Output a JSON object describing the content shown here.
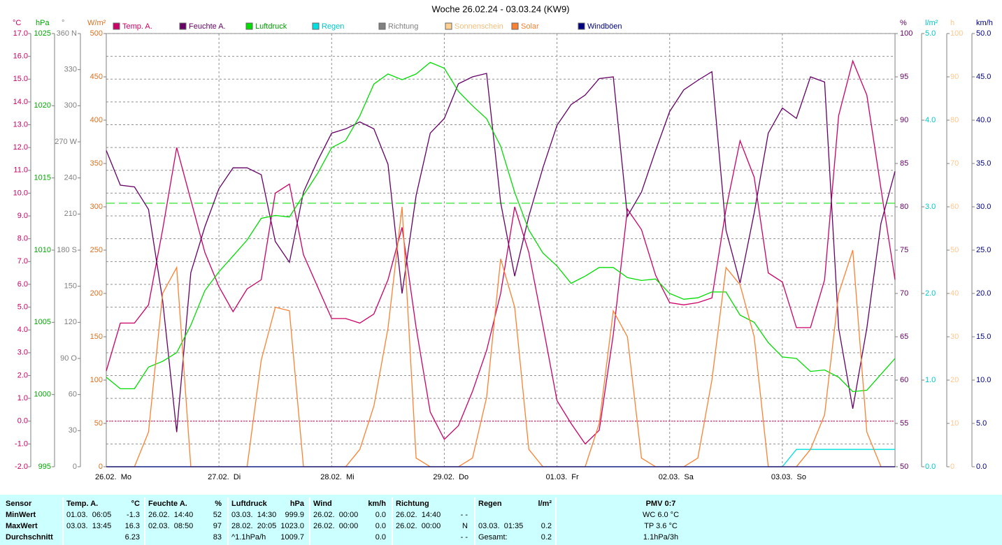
{
  "chart_data": {
    "type": "line",
    "title": "Woche 26.02.24 - 03.03.24 (KW9)",
    "xlim": [
      0,
      168
    ],
    "xticks": [
      {
        "value": 0,
        "label": "26.02.  Mo"
      },
      {
        "value": 24,
        "label": "27.02.  Di"
      },
      {
        "value": 48,
        "label": "28.02.  Mi"
      },
      {
        "value": 72,
        "label": "29.02.  Do"
      },
      {
        "value": 96,
        "label": "01.03.  Fr"
      },
      {
        "value": 120,
        "label": "02.03.  Sa"
      },
      {
        "value": 144,
        "label": "03.03.  So"
      }
    ],
    "axes": [
      {
        "unit": "°C",
        "side": "left",
        "color": "#cc0066",
        "grid": true,
        "lim": [
          -2,
          17
        ],
        "ticks": [
          {
            "value": -2,
            "label": "-2.0"
          },
          {
            "value": -1,
            "label": "-1.0"
          },
          {
            "value": 0,
            "label": "0.0"
          },
          {
            "value": 1,
            "label": "1.0"
          },
          {
            "value": 2,
            "label": "2.0"
          },
          {
            "value": 3,
            "label": "3.0"
          },
          {
            "value": 4,
            "label": "4.0"
          },
          {
            "value": 5,
            "label": "5.0"
          },
          {
            "value": 6,
            "label": "6.0"
          },
          {
            "value": 7,
            "label": "7.0"
          },
          {
            "value": 8,
            "label": "8.0"
          },
          {
            "value": 9,
            "label": "9.0"
          },
          {
            "value": 10,
            "label": "10.0"
          },
          {
            "value": 11,
            "label": "11.0"
          },
          {
            "value": 12,
            "label": "12.0"
          },
          {
            "value": 13,
            "label": "13.0"
          },
          {
            "value": 14,
            "label": "14.0"
          },
          {
            "value": 15,
            "label": "15.0"
          },
          {
            "value": 16,
            "label": "16.0"
          },
          {
            "value": 17,
            "label": "17.0"
          }
        ]
      },
      {
        "unit": "hPa",
        "side": "left",
        "color": "#00aa00",
        "lim": [
          995,
          1025
        ],
        "ticks": [
          995,
          1000,
          1005,
          1010,
          1015,
          1020,
          1025
        ]
      },
      {
        "unit": "°",
        "side": "left",
        "color": "#808080",
        "lim": [
          0,
          360
        ],
        "ticks": [
          0,
          30,
          60,
          {
            "value": 90,
            "label": "90 O"
          },
          120,
          150,
          {
            "value": 180,
            "label": "180 S"
          },
          210,
          240,
          {
            "value": 270,
            "label": "270 W"
          },
          300,
          330,
          {
            "value": 360,
            "label": "360 N"
          }
        ]
      },
      {
        "unit": "W/m²",
        "side": "left",
        "color": "#e07020",
        "lim": [
          0,
          500
        ],
        "ticks": [
          0,
          50,
          100,
          150,
          200,
          250,
          300,
          350,
          400,
          450,
          500
        ]
      },
      {
        "unit": "%",
        "side": "right",
        "color": "#660066",
        "lim": [
          50,
          100
        ],
        "ticks": [
          50,
          55,
          60,
          65,
          70,
          75,
          80,
          85,
          90,
          95,
          100
        ]
      },
      {
        "unit": "l/m²",
        "side": "right",
        "color": "#00c8c8",
        "lim": [
          0,
          5
        ],
        "ticks": [
          {
            "value": 0,
            "label": "0.0"
          },
          {
            "value": 1,
            "label": "1.0"
          },
          {
            "value": 2,
            "label": "2.0"
          },
          {
            "value": 3,
            "label": "3.0"
          },
          {
            "value": 4,
            "label": "4.0"
          },
          {
            "value": 5,
            "label": "5.0"
          }
        ]
      },
      {
        "unit": "h",
        "side": "right",
        "color": "#ffc890",
        "lim": [
          0,
          100
        ],
        "ticks": [
          0,
          10,
          20,
          30,
          40,
          50,
          60,
          70,
          80,
          90,
          100
        ]
      },
      {
        "unit": "km/h",
        "side": "right",
        "color": "#000080",
        "lim": [
          0,
          50
        ],
        "ticks": [
          {
            "value": 0,
            "label": "0.0"
          },
          {
            "value": 5,
            "label": "5.0"
          },
          {
            "value": 10,
            "label": "10.0"
          },
          {
            "value": 15,
            "label": "15.0"
          },
          {
            "value": 20,
            "label": "20.0"
          },
          {
            "value": 25,
            "label": "25.0"
          },
          {
            "value": 30,
            "label": "30.0"
          },
          {
            "value": 35,
            "label": "35.0"
          },
          {
            "value": 40,
            "label": "40.0"
          },
          {
            "value": 45,
            "label": "45.0"
          },
          {
            "value": 50,
            "label": "50.0"
          }
        ]
      }
    ],
    "reference_lines": [
      {
        "axis": "°C",
        "value": 0,
        "color": "#cc0066"
      },
      {
        "axis": "hPa",
        "value": 1013.25,
        "color": "#00dd00"
      }
    ],
    "x": [
      0,
      3,
      6,
      9,
      12,
      15,
      18,
      21,
      24,
      27,
      30,
      33,
      36,
      39,
      42,
      45,
      48,
      51,
      54,
      57,
      60,
      63,
      66,
      69,
      72,
      75,
      78,
      81,
      84,
      87,
      90,
      93,
      96,
      99,
      102,
      105,
      108,
      111,
      114,
      117,
      120,
      123,
      126,
      129,
      132,
      135,
      138,
      141,
      144,
      147,
      150,
      153,
      156,
      159,
      162,
      165,
      168
    ],
    "series": [
      {
        "name": "Temp. A.",
        "color": "#cc0066",
        "axis": "°C",
        "values": [
          2.2,
          4.3,
          4.3,
          5.1,
          8.4,
          12.0,
          9.7,
          7.4,
          5.9,
          4.8,
          5.8,
          6.2,
          10.0,
          10.4,
          7.3,
          5.9,
          4.5,
          4.5,
          4.3,
          4.7,
          6.2,
          8.5,
          4.1,
          0.4,
          -0.8,
          -0.2,
          1.3,
          3.1,
          5.6,
          9.4,
          7.4,
          4.2,
          0.9,
          -0.1,
          -1.0,
          -0.4,
          3.8,
          9.3,
          8.4,
          6.4,
          5.2,
          5.1,
          5.2,
          5.4,
          9.3,
          12.3,
          10.7,
          6.5,
          6.1,
          4.1,
          4.1,
          6.2,
          13.4,
          15.8,
          14.3,
          10.2,
          6.2
        ]
      },
      {
        "name": "Feuchte A.",
        "color": "#660066",
        "axis": "%",
        "values": [
          86.5,
          82.5,
          82.3,
          79.7,
          69.2,
          54.0,
          72.4,
          77.7,
          82.1,
          84.5,
          84.5,
          83.7,
          76.0,
          73.6,
          81.7,
          85.3,
          88.5,
          89.0,
          89.8,
          89.0,
          84.9,
          70.0,
          81.3,
          88.5,
          90.2,
          94.2,
          95.0,
          95.4,
          80.5,
          72.0,
          78.9,
          84.5,
          89.4,
          91.8,
          92.9,
          94.8,
          95.0,
          78.9,
          81.7,
          86.5,
          91.0,
          93.5,
          94.6,
          95.6,
          77.3,
          71.2,
          79.3,
          88.5,
          91.4,
          90.2,
          95.0,
          94.4,
          66.0,
          56.7,
          66.0,
          78.1,
          84.1
        ]
      },
      {
        "name": "Luftdruck",
        "color": "#00dd00",
        "axis": "hPa",
        "values": [
          1001.2,
          1000.4,
          1000.4,
          1001.9,
          1002.3,
          1002.9,
          1004.8,
          1007.2,
          1008.5,
          1009.6,
          1010.7,
          1012.2,
          1012.4,
          1012.3,
          1013.8,
          1015.3,
          1017.1,
          1017.6,
          1019.3,
          1021.5,
          1022.2,
          1021.8,
          1022.2,
          1023.0,
          1022.6,
          1021.0,
          1020.0,
          1019.1,
          1017.2,
          1014.0,
          1011.4,
          1009.8,
          1008.9,
          1007.7,
          1008.2,
          1008.8,
          1008.8,
          1008.1,
          1007.9,
          1008.0,
          1007.0,
          1006.6,
          1006.7,
          1007.1,
          1007.1,
          1005.5,
          1005.0,
          1003.6,
          1002.6,
          1002.5,
          1001.6,
          1001.7,
          1001.2,
          1000.2,
          1000.3,
          1001.4,
          1002.5
        ]
      },
      {
        "name": "Regen",
        "color": "#00e0e0",
        "axis": "l/m²",
        "values": [
          0,
          0,
          0,
          0,
          0,
          0,
          0,
          0,
          0,
          0,
          0,
          0,
          0,
          0,
          0,
          0,
          0,
          0,
          0,
          0,
          0,
          0,
          0,
          0,
          0,
          0,
          0,
          0,
          0,
          0,
          0,
          0,
          0,
          0,
          0,
          0,
          0,
          0,
          0,
          0,
          0,
          0,
          0,
          0,
          0,
          0,
          0,
          0,
          0,
          0.2,
          0.2,
          0.2,
          0.2,
          0.2,
          0.2,
          0.2,
          0.2
        ]
      },
      {
        "name": "Richtung",
        "color": "#808080",
        "axis": "°",
        "values": [
          null,
          null,
          null,
          null,
          null,
          null,
          null,
          null,
          null,
          null,
          null,
          null,
          null,
          null,
          null,
          null,
          null,
          null,
          null,
          null,
          null,
          null,
          null,
          null,
          null,
          null,
          null,
          null,
          null,
          null,
          null,
          null,
          null,
          null,
          null,
          null,
          null,
          null,
          null,
          null,
          null,
          null,
          null,
          null,
          null,
          null,
          null,
          null,
          null,
          null,
          null,
          null,
          null,
          null,
          null,
          null,
          null
        ]
      },
      {
        "name": "Sonnenschein",
        "color": "#ffd090",
        "axis": "h",
        "values": [
          0,
          0,
          0,
          0,
          0,
          0,
          0,
          0,
          0,
          0,
          0,
          0,
          0,
          0,
          0,
          0,
          0,
          0,
          0,
          0,
          0,
          0,
          0,
          0,
          0,
          0,
          0,
          0,
          0,
          0,
          0,
          0,
          0,
          0,
          0,
          0,
          0,
          0,
          0,
          0,
          0,
          0,
          0,
          0,
          0,
          0,
          0,
          0,
          0,
          0,
          0,
          0,
          0,
          0,
          0,
          0,
          0
        ]
      },
      {
        "name": "Solar",
        "color": "#ff8030",
        "axis": "W/m²",
        "values": [
          0,
          0,
          0,
          40,
          200,
          230,
          0,
          0,
          0,
          0,
          0,
          123,
          184,
          180,
          0,
          0,
          0,
          0,
          20,
          70,
          160,
          300,
          10,
          0,
          0,
          0,
          10,
          80,
          240,
          184,
          20,
          0,
          0,
          0,
          0,
          50,
          180,
          150,
          10,
          0,
          0,
          0,
          10,
          100,
          230,
          210,
          150,
          0,
          0,
          0,
          20,
          60,
          200,
          250,
          40,
          0,
          0
        ]
      },
      {
        "name": "Windböen",
        "color": "#000080",
        "axis": "km/h",
        "values": [
          0,
          0,
          0,
          0,
          0,
          0,
          0,
          0,
          0,
          0,
          0,
          0,
          0,
          0,
          0,
          0,
          0,
          0,
          0,
          0,
          0,
          0,
          0,
          0,
          0,
          0,
          0,
          0,
          0,
          0,
          0,
          0,
          0,
          0,
          0,
          0,
          0,
          0,
          0,
          0,
          0,
          0,
          0,
          0,
          0,
          0,
          0,
          0,
          0,
          0,
          0,
          0,
          0,
          0,
          0,
          0,
          0
        ]
      }
    ]
  },
  "table": {
    "header": [
      "Sensor",
      "Temp. A.",
      "°C",
      "Feuchte A.",
      "%",
      "Luftdruck",
      "hPa",
      "Wind",
      "km/h",
      "Richtung",
      null,
      "Regen",
      "l/m²",
      "PMV 0:7"
    ],
    "rows": [
      [
        "MinWert",
        "01.03.  06:05",
        "-1.3",
        "26.02.  14:40",
        "52",
        "03.03.  14:30",
        "999.9",
        "26.02.  00:00",
        "0.0",
        "26.02.  14:40",
        "- -",
        null,
        null,
        "WC 6.0 °C"
      ],
      [
        "MaxWert",
        "03.03.  13:45",
        "16.3",
        "02.03.  08:50",
        "97",
        "28.02.  20:05",
        "1023.0",
        "26.02.  00:00",
        "0.0",
        "26.02.  00:00",
        "N",
        "03.03.  01:35",
        "0.2",
        "TP 3.6 °C"
      ],
      [
        "Durchschnitt",
        null,
        "6.23",
        null,
        "83",
        "^1.1hPa/h",
        "1009.7",
        null,
        "0.0",
        null,
        "- -",
        "Gesamt:",
        "0.2",
        "1.1hPa/3h"
      ]
    ]
  }
}
